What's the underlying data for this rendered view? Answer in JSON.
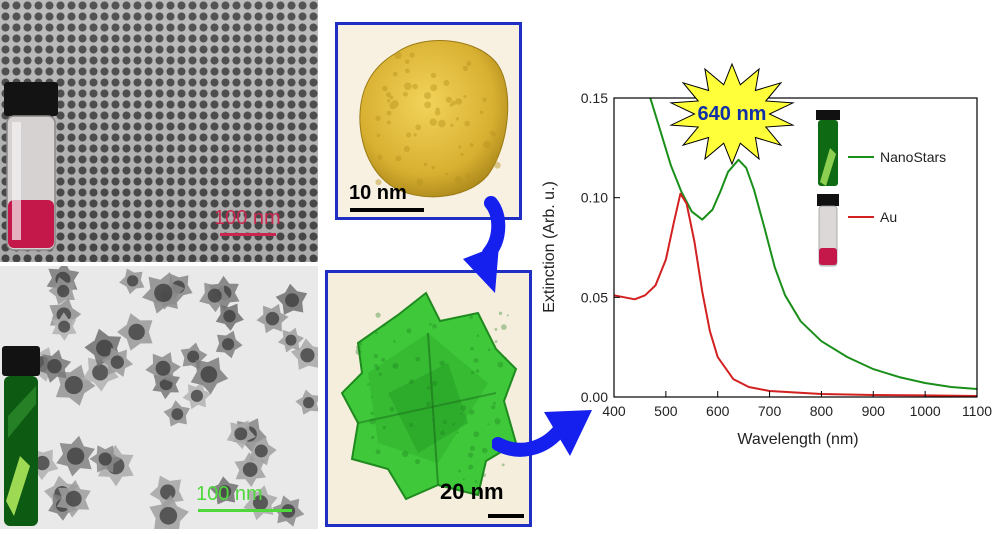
{
  "images": {
    "top_left_scale": "100 nm",
    "bottom_left_scale": "100 nm",
    "gold_particle_scale": "10 nm",
    "nanostar_scale": "20 nm"
  },
  "colors": {
    "nanostars": "#1a8f1a",
    "au": "#d32020",
    "frame": "#1f2fc4",
    "arrow": "#1520ee",
    "burst": "#ffff3a",
    "scale_top_left": "#c8284f",
    "scale_bottom_left": "#4fd83c"
  },
  "icons": [
    "curved-arrow-icon",
    "burst-icon",
    "vial-icon"
  ],
  "chart_data": {
    "type": "line",
    "xlabel": "Wavelength (nm)",
    "ylabel": "Extinction (Arb. u.)",
    "xlim": [
      400,
      1100
    ],
    "ylim": [
      0,
      0.15
    ],
    "xticks": [
      "400",
      "500",
      "600",
      "700",
      "800",
      "900",
      "1000",
      "1100"
    ],
    "yticks": [
      "0.00",
      "0.05",
      "0.10",
      "0.15"
    ],
    "legend_position": "right",
    "annotation": "640 nm",
    "series": [
      {
        "name": "NanoStars",
        "color": "#1a8f1a",
        "points": [
          [
            470,
            0.15
          ],
          [
            490,
            0.133
          ],
          [
            510,
            0.116
          ],
          [
            530,
            0.103
          ],
          [
            550,
            0.093
          ],
          [
            570,
            0.089
          ],
          [
            590,
            0.094
          ],
          [
            605,
            0.103
          ],
          [
            620,
            0.113
          ],
          [
            640,
            0.119
          ],
          [
            655,
            0.115
          ],
          [
            670,
            0.104
          ],
          [
            690,
            0.085
          ],
          [
            710,
            0.065
          ],
          [
            730,
            0.051
          ],
          [
            760,
            0.038
          ],
          [
            800,
            0.028
          ],
          [
            850,
            0.02
          ],
          [
            900,
            0.014
          ],
          [
            950,
            0.01
          ],
          [
            1000,
            0.007
          ],
          [
            1050,
            0.005
          ],
          [
            1100,
            0.004
          ]
        ]
      },
      {
        "name": "Au",
        "color": "#d32020",
        "points": [
          [
            400,
            0.051
          ],
          [
            420,
            0.05
          ],
          [
            440,
            0.049
          ],
          [
            460,
            0.051
          ],
          [
            480,
            0.056
          ],
          [
            500,
            0.069
          ],
          [
            515,
            0.087
          ],
          [
            528,
            0.102
          ],
          [
            540,
            0.097
          ],
          [
            555,
            0.078
          ],
          [
            570,
            0.053
          ],
          [
            585,
            0.033
          ],
          [
            600,
            0.02
          ],
          [
            630,
            0.009
          ],
          [
            660,
            0.005
          ],
          [
            700,
            0.003
          ],
          [
            800,
            0.0015
          ],
          [
            900,
            0.001
          ],
          [
            1000,
            0.0008
          ],
          [
            1100,
            0.0005
          ]
        ]
      }
    ]
  }
}
